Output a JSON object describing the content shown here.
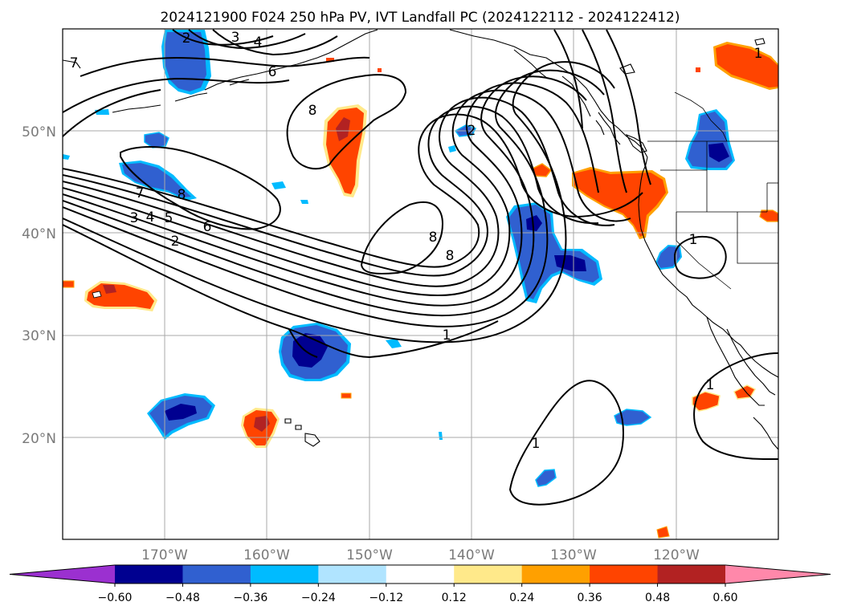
{
  "title": "2024121900 F024 250 hPa PV, IVT Landfall PC (2024122112 - 2024122412)",
  "axes": {
    "lat_ticks": [
      "20°N",
      "30°N",
      "40°N",
      "50°N"
    ],
    "lon_ticks": [
      "170°W",
      "160°W",
      "150°W",
      "140°W",
      "130°W",
      "120°W"
    ]
  },
  "colorbar": {
    "tick_labels": [
      "−0.60",
      "−0.48",
      "−0.36",
      "−0.24",
      "−0.12",
      "0.12",
      "0.24",
      "0.36",
      "0.48",
      "0.60"
    ],
    "colors": [
      "#9b30d0",
      "#000090",
      "#3060d0",
      "#00bbff",
      "#b0e4ff",
      "#ffffff",
      "#ffe98a",
      "#ffa000",
      "#ff4400",
      "#b22222",
      "#ff88aa"
    ]
  },
  "contour_labels": [
    "2",
    "3",
    "4",
    "6",
    "7",
    "8",
    "1",
    "7",
    "8",
    "3",
    "4",
    "5",
    "6",
    "2",
    "8",
    "2",
    "8",
    "1",
    "1",
    "1",
    "1"
  ],
  "map_colors": {
    "positive_fill": "#ff4400",
    "positive_core": "#b22222",
    "positive_edge": "#ffa000",
    "positive_outer": "#ffe98a",
    "negative_fill": "#3060d0",
    "negative_core": "#000090",
    "negative_edge": "#00bbff",
    "negative_outer": "#b0e4ff"
  }
}
